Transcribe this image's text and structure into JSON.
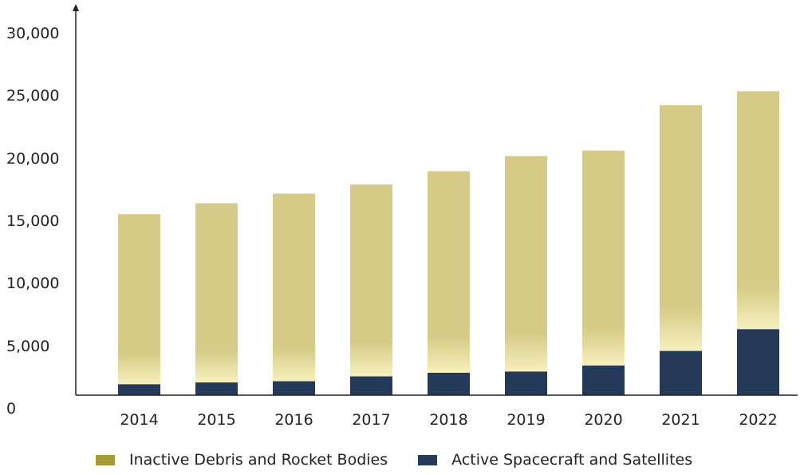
{
  "chart_data": {
    "type": "bar",
    "stacked": true,
    "categories": [
      "2014",
      "2015",
      "2016",
      "2017",
      "2018",
      "2019",
      "2020",
      "2021",
      "2022"
    ],
    "series": [
      {
        "name": "Active Spacecraft and Satellites",
        "color": "#253a5a",
        "values": [
          900,
          1050,
          1150,
          1550,
          1850,
          1950,
          2450,
          3650,
          5450
        ]
      },
      {
        "name": "Inactive Debris and Rocket Bodies",
        "color": "#d5cb86",
        "values": [
          14050,
          14800,
          15500,
          15850,
          16650,
          17800,
          17750,
          20300,
          19650
        ]
      }
    ],
    "totals": [
      14950,
      15850,
      16650,
      17400,
      18500,
      19750,
      20200,
      23950,
      25100
    ],
    "yticks": [
      "0",
      "5,000",
      "10,000",
      "15,000",
      "20,000",
      "25,000",
      "30,000"
    ],
    "ylim": [
      0,
      30000
    ],
    "grid": false,
    "legend_position": "bottom",
    "legend_order": [
      "Inactive Debris and Rocket Bodies",
      "Active Spacecraft and Satellites"
    ]
  }
}
